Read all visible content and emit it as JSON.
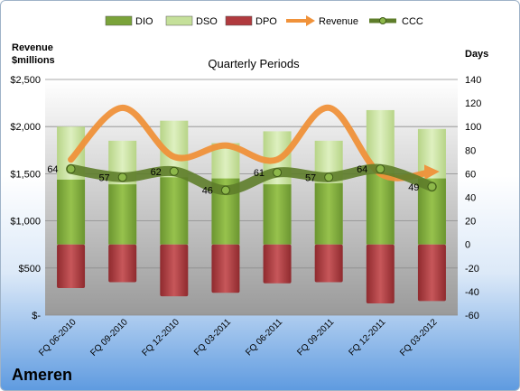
{
  "company": "Ameren",
  "chart_data": {
    "type": "bar",
    "title": "Quarterly Periods",
    "y_left_label_line1": "Revenue",
    "y_left_label_line2": "$millions",
    "y_right_label": "Days",
    "y_left_range": [
      0,
      2500
    ],
    "y_right_range": [
      -60,
      140
    ],
    "y_left_ticks": [
      "$-",
      "$500",
      "$1,000",
      "$1,500",
      "$2,000",
      "$2,500"
    ],
    "y_right_ticks": [
      "-60",
      "-40",
      "-20",
      "0",
      "20",
      "40",
      "60",
      "80",
      "100",
      "120",
      "140"
    ],
    "categories": [
      "FQ 06-2010",
      "FQ 09-2010",
      "FQ 12-2010",
      "FQ 03-2011",
      "FQ 06-2011",
      "FQ 09-2011",
      "FQ 12-2011",
      "FQ 03-2012"
    ],
    "legend": [
      "DIO",
      "DSO",
      "DPO",
      "Revenue",
      "CCC"
    ],
    "legend_position": "top",
    "series": [
      {
        "name": "DIO",
        "axis": "right",
        "color": "#7aa33a",
        "values": [
          55,
          51,
          57,
          56,
          51,
          52,
          60,
          56
        ]
      },
      {
        "name": "DSO",
        "axis": "right",
        "color": "#c5e09a",
        "values": [
          100,
          88,
          105,
          86,
          96,
          88,
          114,
          98
        ]
      },
      {
        "name": "DPO",
        "axis": "right",
        "color": "#b03a3e",
        "values": [
          -37,
          -32,
          -44,
          -41,
          -33,
          -32,
          -50,
          -48
        ]
      },
      {
        "name": "Revenue",
        "axis": "left",
        "color": "#f0923a",
        "values": [
          1650,
          2200,
          1680,
          1800,
          1650,
          2200,
          1500,
          1520
        ]
      },
      {
        "name": "CCC",
        "axis": "right",
        "color": "#5e7d2a",
        "values": [
          64,
          57,
          62,
          46,
          61,
          57,
          64,
          49
        ]
      }
    ],
    "ccc_labels": [
      "64",
      "57",
      "62",
      "46",
      "61",
      "57",
      "64",
      "49"
    ],
    "grid": true
  }
}
